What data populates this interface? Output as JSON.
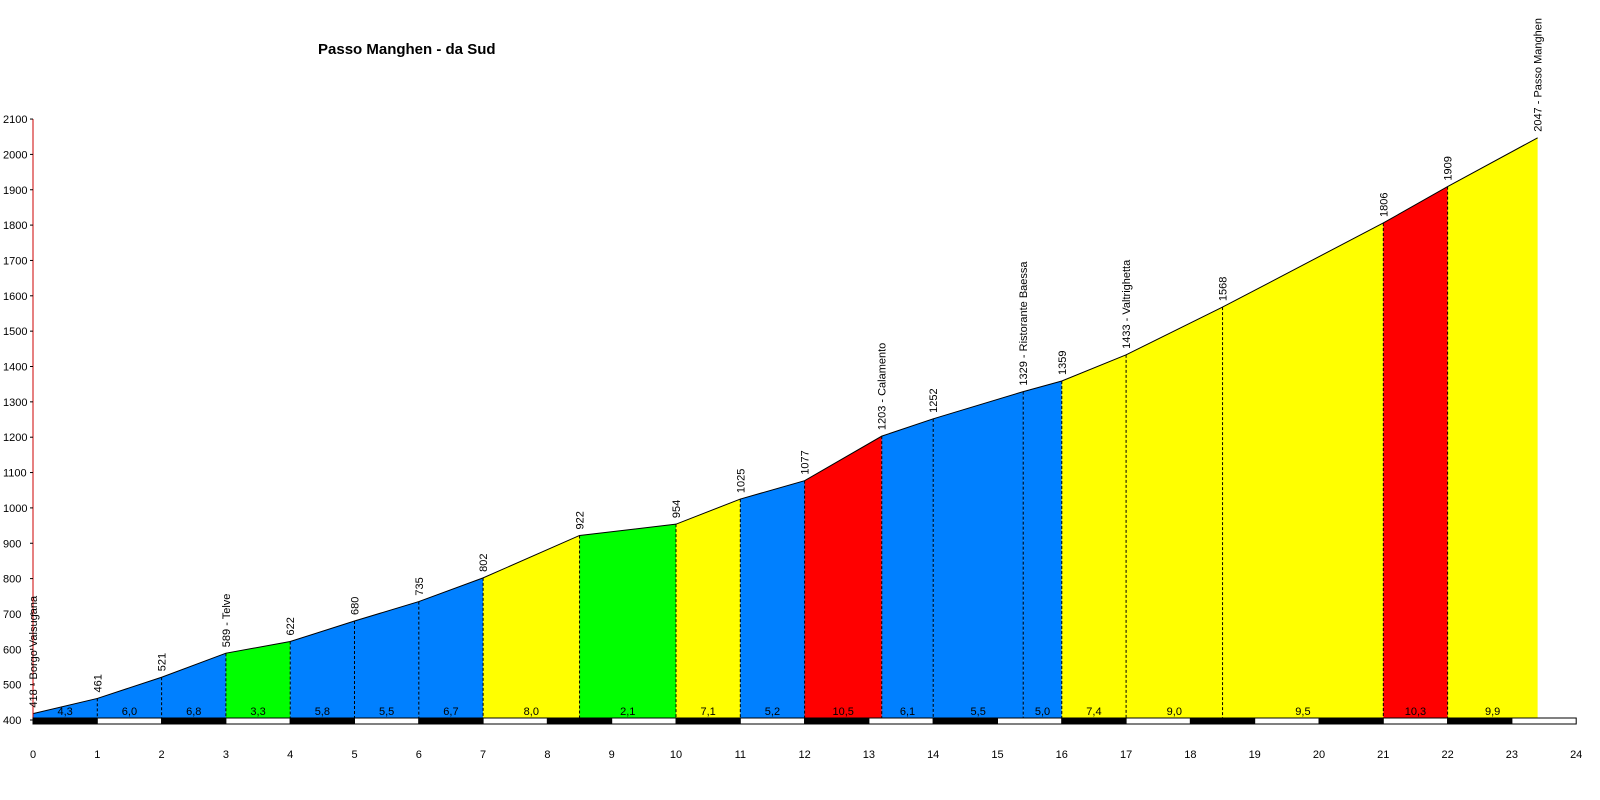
{
  "chart_data": {
    "type": "area",
    "title": "Passo Manghen - da Sud",
    "xlabel": "",
    "ylabel": "",
    "xlim": [
      0,
      24
    ],
    "ylim": [
      400,
      2100
    ],
    "x_ticks": [
      0,
      1,
      2,
      3,
      4,
      5,
      6,
      7,
      8,
      9,
      10,
      11,
      12,
      13,
      14,
      15,
      16,
      17,
      18,
      19,
      20,
      21,
      22,
      23,
      24
    ],
    "y_ticks": [
      400,
      500,
      600,
      700,
      800,
      900,
      1000,
      1100,
      1200,
      1300,
      1400,
      1500,
      1600,
      1700,
      1800,
      1900,
      2000,
      2100
    ],
    "grade_colors": {
      "blue": "#0080ff",
      "green": "#00ff00",
      "yellow": "#ffff00",
      "red": "#ff0000"
    },
    "points": [
      {
        "km": 0,
        "elev": 418,
        "label": "418 - Borgo Valsugana"
      },
      {
        "km": 1,
        "elev": 461,
        "label": "461"
      },
      {
        "km": 2,
        "elev": 521,
        "label": "521"
      },
      {
        "km": 3,
        "elev": 589,
        "label": "589 - Telve"
      },
      {
        "km": 4,
        "elev": 622,
        "label": "622"
      },
      {
        "km": 5,
        "elev": 680,
        "label": "680"
      },
      {
        "km": 6,
        "elev": 735,
        "label": "735"
      },
      {
        "km": 7,
        "elev": 802,
        "label": "802"
      },
      {
        "km": 8.5,
        "elev": 922,
        "label": "922"
      },
      {
        "km": 10,
        "elev": 954,
        "label": "954"
      },
      {
        "km": 11,
        "elev": 1025,
        "label": "1025"
      },
      {
        "km": 12,
        "elev": 1077,
        "label": "1077"
      },
      {
        "km": 13.2,
        "elev": 1203,
        "label": "1203 - Calamento"
      },
      {
        "km": 14,
        "elev": 1252,
        "label": "1252"
      },
      {
        "km": 15.4,
        "elev": 1329,
        "label": "1329 - Ristorante Baessa"
      },
      {
        "km": 16,
        "elev": 1359,
        "label": "1359"
      },
      {
        "km": 17,
        "elev": 1433,
        "label": "1433 - Valtrighetta"
      },
      {
        "km": 18.5,
        "elev": 1568,
        "label": "1568"
      },
      {
        "km": 21,
        "elev": 1806,
        "label": "1806"
      },
      {
        "km": 22,
        "elev": 1909,
        "label": "1909"
      },
      {
        "km": 23.4,
        "elev": 2047,
        "label": "2047 - Passo Manghen"
      }
    ],
    "segments": [
      {
        "grade": "4,3",
        "color": "blue"
      },
      {
        "grade": "6,0",
        "color": "blue"
      },
      {
        "grade": "6,8",
        "color": "blue"
      },
      {
        "grade": "3,3",
        "color": "green"
      },
      {
        "grade": "5,8",
        "color": "blue"
      },
      {
        "grade": "5,5",
        "color": "blue"
      },
      {
        "grade": "6,7",
        "color": "blue"
      },
      {
        "grade": "8,0",
        "color": "yellow"
      },
      {
        "grade": "2,1",
        "color": "green"
      },
      {
        "grade": "7,1",
        "color": "yellow"
      },
      {
        "grade": "5,2",
        "color": "blue"
      },
      {
        "grade": "10,5",
        "color": "red"
      },
      {
        "grade": "6,1",
        "color": "blue"
      },
      {
        "grade": "5,5",
        "color": "blue"
      },
      {
        "grade": "5,0",
        "color": "blue"
      },
      {
        "grade": "7,4",
        "color": "yellow"
      },
      {
        "grade": "9,0",
        "color": "yellow"
      },
      {
        "grade": "9,5",
        "color": "yellow"
      },
      {
        "grade": "10,3",
        "color": "red"
      },
      {
        "grade": "9,9",
        "color": "yellow"
      }
    ]
  }
}
